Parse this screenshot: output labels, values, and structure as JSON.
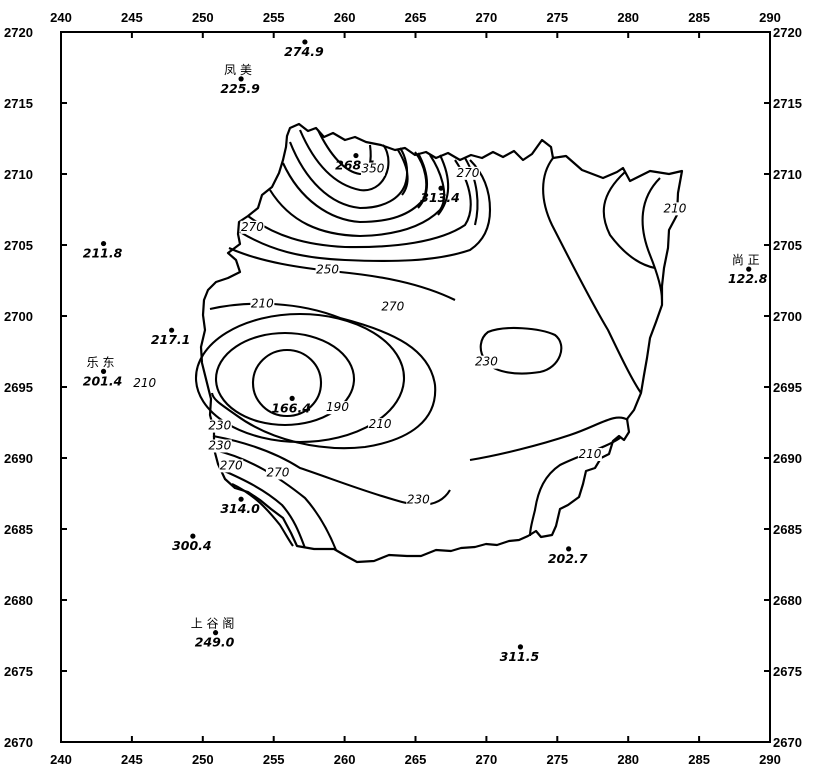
{
  "axes": {
    "x_ticks": [
      "240",
      "245",
      "250",
      "255",
      "260",
      "265",
      "270",
      "275",
      "280",
      "285",
      "290"
    ],
    "y_ticks": [
      "2720",
      "2715",
      "2710",
      "2705",
      "2700",
      "2695",
      "2690",
      "2685",
      "2680",
      "2675",
      "2670"
    ]
  },
  "stations": [
    {
      "name": "",
      "value": "274.9",
      "x": 257.2,
      "y": 2719.3
    },
    {
      "name": "凤 美",
      "value": "225.9",
      "x": 252.7,
      "y": 2716.7
    },
    {
      "name": "",
      "value": "268.4",
      "x": 260.8,
      "y": 2711.3
    },
    {
      "name": "",
      "value": "313.4",
      "x": 266.8,
      "y": 2709.0
    },
    {
      "name": "",
      "value": "211.8",
      "x": 243.0,
      "y": 2705.1
    },
    {
      "name": "尚 正",
      "value": "122.8",
      "x": 288.5,
      "y": 2703.3
    },
    {
      "name": "",
      "value": "217.1",
      "x": 247.8,
      "y": 2699.0
    },
    {
      "name": "乐 东",
      "value": "201.4",
      "x": 243.0,
      "y": 2696.1
    },
    {
      "name": "",
      "value": "166.4",
      "x": 256.3,
      "y": 2694.2
    },
    {
      "name": "",
      "value": "314.0",
      "x": 252.7,
      "y": 2687.1
    },
    {
      "name": "",
      "value": "300.4",
      "x": 249.3,
      "y": 2684.5
    },
    {
      "name": "",
      "value": "202.7",
      "x": 275.8,
      "y": 2683.6
    },
    {
      "name": "上 谷 阁",
      "value": "249.0",
      "x": 250.9,
      "y": 2677.7
    },
    {
      "name": "",
      "value": "311.5",
      "x": 272.4,
      "y": 2676.7
    }
  ],
  "contour_labels": [
    {
      "text": "270",
      "x": 253.5,
      "y": 2706.0
    },
    {
      "text": "250",
      "x": 258.8,
      "y": 2703.0
    },
    {
      "text": "270",
      "x": 263.4,
      "y": 2700.4
    },
    {
      "text": "210",
      "x": 254.2,
      "y": 2700.6
    },
    {
      "text": "210",
      "x": 245.9,
      "y": 2695.0
    },
    {
      "text": "190",
      "x": 259.5,
      "y": 2693.3
    },
    {
      "text": "210",
      "x": 262.5,
      "y": 2692.1
    },
    {
      "text": "230",
      "x": 251.2,
      "y": 2692.0
    },
    {
      "text": "230",
      "x": 251.2,
      "y": 2690.6
    },
    {
      "text": "270",
      "x": 252.0,
      "y": 2689.2
    },
    {
      "text": "270",
      "x": 255.3,
      "y": 2688.7
    },
    {
      "text": "230",
      "x": 265.2,
      "y": 2686.8
    },
    {
      "text": "210",
      "x": 277.3,
      "y": 2690.0
    },
    {
      "text": "230",
      "x": 270.0,
      "y": 2696.5
    },
    {
      "text": "210",
      "x": 283.3,
      "y": 2707.3
    },
    {
      "text": "350",
      "x": 262.0,
      "y": 2710.1
    },
    {
      "text": "270",
      "x": 268.7,
      "y": 2709.8
    }
  ]
}
